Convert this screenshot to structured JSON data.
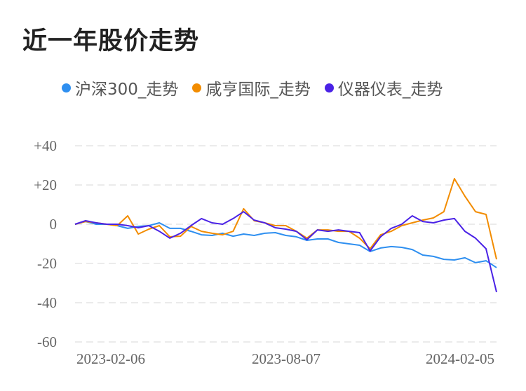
{
  "title": "近一年股价走势",
  "chart_data": {
    "type": "line",
    "title": "近一年股价走势",
    "x_tick_labels": [
      "2023-02-06",
      "2023-08-07",
      "2024-02-05"
    ],
    "y_ticks": [
      40,
      20,
      0,
      -20,
      -40,
      -60
    ],
    "y_tick_labels": [
      "+40",
      "+20",
      "0",
      "-20",
      "-40",
      "-60"
    ],
    "ylim": [
      -60,
      40
    ],
    "grid": true,
    "legend_placement": "top",
    "series": [
      {
        "name": "沪深300_走势",
        "color": "#2e8ff0",
        "values": [
          0,
          1.4,
          0,
          0,
          -0.7,
          -2.1,
          -1.1,
          -0.7,
          0.7,
          -2.1,
          -2.1,
          -3.6,
          -5.4,
          -5.7,
          -4.6,
          -6.1,
          -5,
          -5.7,
          -4.6,
          -4.3,
          -5.7,
          -6.4,
          -8.2,
          -7.5,
          -7.5,
          -9.3,
          -10,
          -10.7,
          -13.9,
          -12.1,
          -11.4,
          -11.8,
          -12.9,
          -15.7,
          -16.4,
          -17.9,
          -18.2,
          -17.1,
          -19.6,
          -18.6,
          -22.1
        ]
      },
      {
        "name": "咸亨国际_走势",
        "color": "#f28c00",
        "values": [
          0,
          1.4,
          0.7,
          0,
          -0.7,
          4.3,
          -5,
          -2.5,
          -0.7,
          -6.4,
          -6.1,
          -1.1,
          -3.6,
          -4.6,
          -5.4,
          -3.6,
          7.9,
          1.8,
          0.7,
          -0.7,
          -0.7,
          -3.6,
          -7.1,
          -2.9,
          -2.9,
          -3.6,
          -3.6,
          -7.1,
          -12.5,
          -5.4,
          -3.6,
          -0.7,
          0.7,
          2.1,
          3.2,
          6.4,
          23.2,
          14.3,
          6.4,
          5,
          -17.9
        ]
      },
      {
        "name": "仪器仪表_走势",
        "color": "#4a22e6",
        "values": [
          0,
          1.8,
          0.7,
          0,
          0,
          -0.7,
          -1.8,
          -0.7,
          -3.6,
          -7.1,
          -4.6,
          -0.7,
          2.9,
          0.7,
          0,
          2.9,
          6.4,
          2.1,
          0.7,
          -1.8,
          -2.5,
          -3.6,
          -7.9,
          -2.9,
          -3.6,
          -2.9,
          -3.6,
          -4.3,
          -13.6,
          -6.4,
          -2.1,
          0,
          4.3,
          1.4,
          0.7,
          2.1,
          2.9,
          -3.6,
          -7.1,
          -12.5,
          -34.6
        ]
      }
    ]
  }
}
